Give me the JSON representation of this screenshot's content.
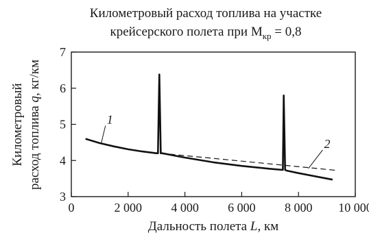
{
  "chart_data": {
    "type": "line",
    "title_lines": [
      "Километровый расход топлива на участке",
      "крейсерского полета при М"
    ],
    "title_subscript": "кр",
    "title_suffix": " = 0,8",
    "xlabel_parts": [
      "Дальность полета ",
      "L",
      ", км"
    ],
    "ylabel_lines": [
      "Километровый",
      "расход топлива "
    ],
    "ylabel_italic": "q",
    "ylabel_unit": ", кг/км",
    "xlim": [
      0,
      10000
    ],
    "ylim": [
      3,
      7
    ],
    "x_ticks": [
      0,
      2000,
      4000,
      6000,
      8000,
      10000
    ],
    "x_tick_labels": [
      "0",
      "2 000",
      "4 000",
      "6 000",
      "8 000",
      "10 000"
    ],
    "y_ticks": [
      3,
      4,
      5,
      6,
      7
    ],
    "y_tick_labels": [
      "3",
      "4",
      "5",
      "6",
      "7"
    ],
    "grid": false,
    "series": [
      {
        "name": "1",
        "style": "solid",
        "x": [
          500,
          1000,
          1500,
          2000,
          2500,
          3000,
          3050,
          3100,
          3150,
          3200,
          4000,
          5000,
          6000,
          7000,
          7450,
          7480,
          7530,
          7580,
          8000,
          9200
        ],
        "y": [
          4.6,
          4.48,
          4.39,
          4.31,
          4.25,
          4.2,
          4.2,
          6.38,
          4.2,
          4.2,
          4.08,
          3.95,
          3.85,
          3.77,
          3.74,
          5.8,
          3.74,
          3.72,
          3.65,
          3.47
        ]
      },
      {
        "name": "2",
        "style": "dashed",
        "x": [
          3150,
          9300
        ],
        "y": [
          4.2,
          3.73
        ]
      }
    ],
    "series_labels": [
      {
        "text": "1",
        "x": 1250,
        "y": 5.02,
        "leader_to": [
          1050,
          4.47
        ]
      },
      {
        "text": "2",
        "x": 8900,
        "y": 4.35,
        "leader_to": [
          8350,
          3.78
        ]
      }
    ]
  }
}
